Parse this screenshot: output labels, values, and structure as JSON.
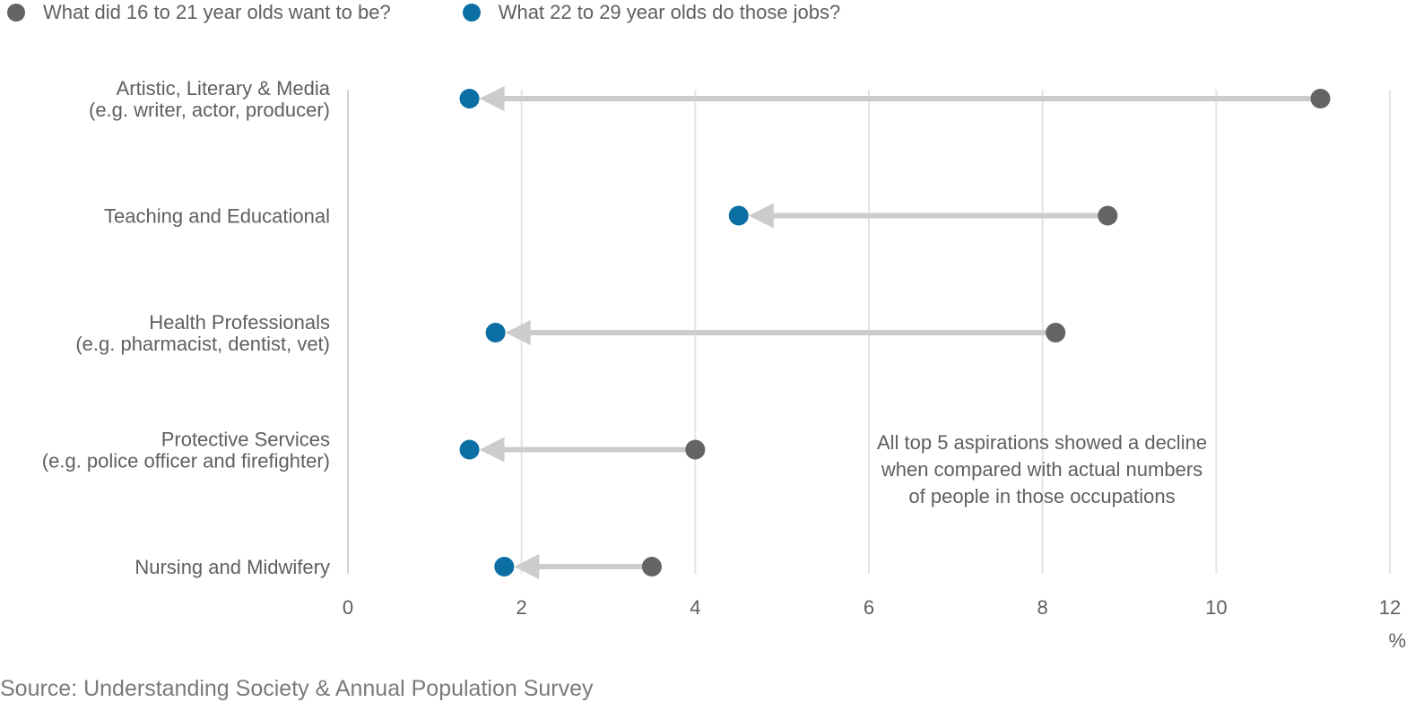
{
  "chart_data": {
    "type": "dumbbell",
    "series": [
      {
        "name": "What did 16 to 21 year olds want to be?",
        "color": "#646464"
      },
      {
        "name": "What 22 to 29 year olds do those jobs?",
        "color": "#0b6fa4"
      }
    ],
    "categories": [
      {
        "lines": [
          "Artistic, Literary & Media",
          "(e.g. writer, actor, producer)"
        ],
        "aspired": 11.2,
        "actual": 1.4
      },
      {
        "lines": [
          "Teaching and Educational"
        ],
        "aspired": 8.75,
        "actual": 4.5
      },
      {
        "lines": [
          "Health Professionals",
          "(e.g. pharmacist, dentist, vet)"
        ],
        "aspired": 8.15,
        "actual": 1.7
      },
      {
        "lines": [
          "Protective Services",
          "(e.g. police officer and firefighter)"
        ],
        "aspired": 4.0,
        "actual": 1.4
      },
      {
        "lines": [
          "Nursing and Midwifery"
        ],
        "aspired": 3.5,
        "actual": 1.8
      }
    ],
    "x_ticks": [
      "0",
      "2",
      "4",
      "6",
      "8",
      "10",
      "12"
    ],
    "x_unit": "%",
    "xlim": [
      0,
      12
    ],
    "grid": true,
    "arrow_color": "#cccccc",
    "annotation": [
      "All top 5 aspirations showed a decline",
      "when compared with actual numbers",
      "of people in those occupations"
    ]
  },
  "source": "Source: Understanding Society & Annual Population Survey"
}
